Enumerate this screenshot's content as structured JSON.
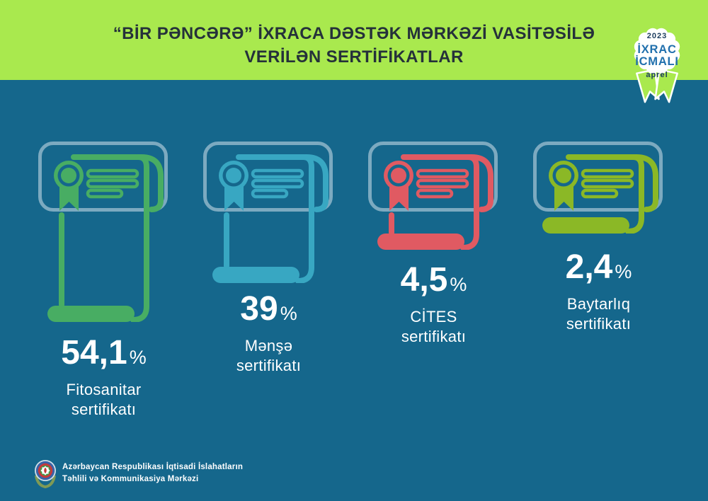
{
  "header": {
    "title_line1": "“BİR PƏNCƏRƏ” İXRACA DƏSTƏK MƏRKƏZİ VASİTƏSİLƏ",
    "title_line2": "VERİLƏN SERTİFİKATLAR",
    "badge": {
      "year": "2023",
      "line1": "İXRAC",
      "line2": "İCMALI",
      "month": "aprel"
    }
  },
  "cards": [
    {
      "value": "54,1",
      "unit": "%",
      "label_line1": "Fitosanitar",
      "label_line2": "sertifikatı",
      "color": "#48ad63"
    },
    {
      "value": "39",
      "unit": "%",
      "label_line1": "Mənşə",
      "label_line2": "sertifikatı",
      "color": "#38a7c2"
    },
    {
      "value": "4,5",
      "unit": "%",
      "label_line1": "CİTES",
      "label_line2": "sertifikatı",
      "color": "#e05a62"
    },
    {
      "value": "2,4",
      "unit": "%",
      "label_line1": "Baytarlıq",
      "label_line2": "sertifikatı",
      "color": "#8bb826"
    }
  ],
  "footer": {
    "org_line1": "Azərbaycan Respublikası İqtisadi İslahatların",
    "org_line2": "Təhlili və Kommunikasiya Mərkəzi"
  },
  "colors": {
    "background": "#15678c",
    "header_band": "#a9e94e",
    "title_text": "#25313a",
    "frame_outline": "#7ba2b5",
    "badge_blue": "#2170ad",
    "badge_navy": "#1c3c5e",
    "white": "#ffffff"
  },
  "chart_data": {
    "type": "bar",
    "title": "“Bir pəncərə” İxraca Dəstək Mərkəzi vasitəsilə verilən sertifikatlar",
    "period": "aprel 2023",
    "categories": [
      "Fitosanitar sertifikatı",
      "Mənşə sertifikatı",
      "CİTES sertifikatı",
      "Baytarlıq sertifikatı"
    ],
    "values": [
      54.1,
      39,
      4.5,
      2.4
    ],
    "unit": "%",
    "series_colors": [
      "#48ad63",
      "#38a7c2",
      "#e05a62",
      "#8bb826"
    ],
    "legend_position": "none",
    "grid": false
  }
}
